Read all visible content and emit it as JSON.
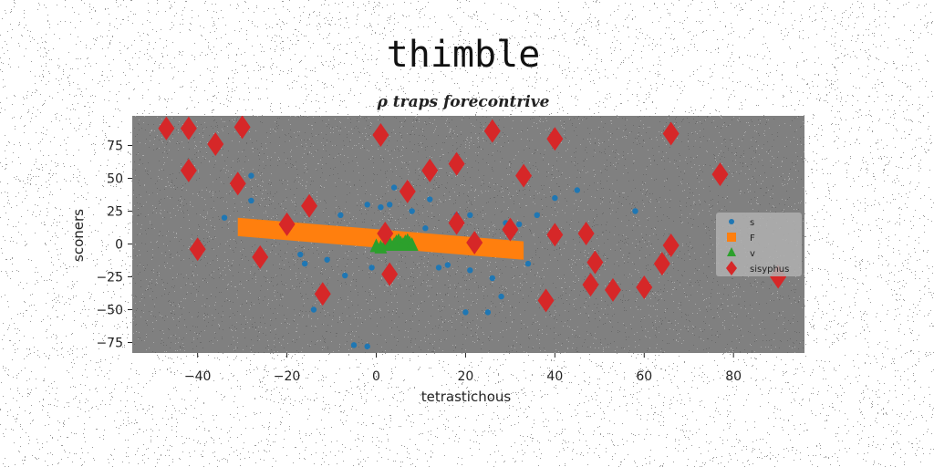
{
  "chart_data": {
    "type": "scatter",
    "title": "thimble",
    "subtitle": "ρ traps forecontrive",
    "xlabel": "tetrastichous",
    "ylabel": "sconers",
    "xlim": [
      -55,
      96
    ],
    "ylim": [
      -83,
      98
    ],
    "xticks": [
      -40,
      -20,
      0,
      20,
      40,
      60,
      80
    ],
    "yticks": [
      -75,
      -50,
      -25,
      0,
      25,
      50,
      75
    ],
    "xtick_labels": [
      "−40",
      "−20",
      "0",
      "20",
      "40",
      "60",
      "80"
    ],
    "ytick_labels": [
      "−75",
      "−50",
      "−25",
      "0",
      "25",
      "50",
      "75"
    ],
    "grid": false,
    "legend_position": "center-right",
    "plot_background": "#808080",
    "series": [
      {
        "name": "s",
        "marker": "circle",
        "color": "#1f77b4",
        "points": [
          [
            -34,
            20
          ],
          [
            -28,
            52
          ],
          [
            -28,
            33
          ],
          [
            -17,
            -8
          ],
          [
            -16,
            -15
          ],
          [
            -14,
            -50
          ],
          [
            -11,
            -12
          ],
          [
            -8,
            22
          ],
          [
            -7,
            -24
          ],
          [
            -5,
            -77
          ],
          [
            -2,
            -78
          ],
          [
            -1,
            -18
          ],
          [
            -2,
            30
          ],
          [
            1,
            28
          ],
          [
            3,
            30
          ],
          [
            4,
            43
          ],
          [
            6,
            40
          ],
          [
            7,
            37
          ],
          [
            8,
            25
          ],
          [
            11,
            12
          ],
          [
            12,
            34
          ],
          [
            14,
            -18
          ],
          [
            16,
            -16
          ],
          [
            18,
            22
          ],
          [
            20,
            -52
          ],
          [
            21,
            -20
          ],
          [
            21,
            22
          ],
          [
            25,
            -52
          ],
          [
            26,
            -26
          ],
          [
            28,
            -40
          ],
          [
            29,
            16
          ],
          [
            32,
            15
          ],
          [
            34,
            -15
          ],
          [
            36,
            22
          ],
          [
            40,
            35
          ],
          [
            45,
            41
          ],
          [
            58,
            25
          ]
        ]
      },
      {
        "name": "F",
        "marker": "square",
        "color": "#ff7f0e",
        "band": {
          "x": [
            -31,
            33
          ],
          "y_start": 13,
          "y_end": -5,
          "half_height": 7
        }
      },
      {
        "name": "v",
        "marker": "triangle",
        "color": "#2ca02c",
        "points": [
          [
            0,
            -2
          ],
          [
            1,
            -3
          ],
          [
            2,
            -1
          ],
          [
            3,
            0
          ],
          [
            4,
            -1
          ],
          [
            4.5,
            1
          ],
          [
            5,
            2
          ],
          [
            5.5,
            0
          ],
          [
            6,
            -1
          ],
          [
            6.5,
            1
          ],
          [
            7,
            2
          ],
          [
            7.5,
            0
          ],
          [
            8,
            -1
          ]
        ]
      },
      {
        "name": "sisyphus",
        "marker": "diamond",
        "color": "#d62728",
        "points": [
          [
            -47,
            88
          ],
          [
            -42,
            88
          ],
          [
            -36,
            76
          ],
          [
            -30,
            89
          ],
          [
            -42,
            56
          ],
          [
            -31,
            46
          ],
          [
            -40,
            -4
          ],
          [
            -26,
            -10
          ],
          [
            -20,
            15
          ],
          [
            -15,
            29
          ],
          [
            -12,
            -38
          ],
          [
            1,
            83
          ],
          [
            2,
            8
          ],
          [
            3,
            -23
          ],
          [
            7,
            40
          ],
          [
            12,
            56
          ],
          [
            18,
            61
          ],
          [
            18,
            16
          ],
          [
            22,
            1
          ],
          [
            26,
            86
          ],
          [
            30,
            11
          ],
          [
            33,
            52
          ],
          [
            38,
            -43
          ],
          [
            40,
            80
          ],
          [
            40,
            7
          ],
          [
            47,
            8
          ],
          [
            48,
            -31
          ],
          [
            49,
            -14
          ],
          [
            53,
            -35
          ],
          [
            60,
            -33
          ],
          [
            64,
            -15
          ],
          [
            66,
            -1
          ],
          [
            66,
            84
          ],
          [
            77,
            53
          ],
          [
            90,
            -25
          ]
        ]
      }
    ]
  }
}
